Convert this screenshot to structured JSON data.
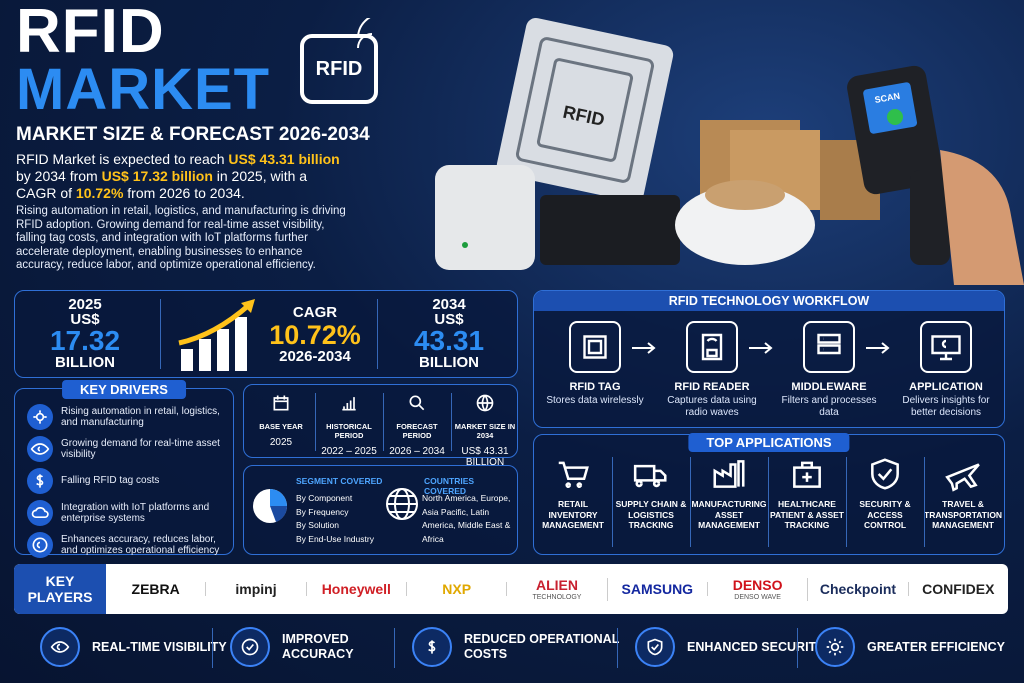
{
  "header": {
    "title_line1": "RFID",
    "title_line2": "MARKET",
    "badge": "RFID",
    "subtitle": "MARKET SIZE & FORECAST 2026-2034",
    "intro": [
      "RFID Market is expected to reach ",
      "US$ 43.31 billion",
      " by 2034 from ",
      "US$ 17.32 billion",
      " in 2025, with a CAGR of ",
      "10.72%",
      " from 2026 to 2034."
    ],
    "description": "Rising automation in retail, logistics, and manufacturing is driving RFID adoption. Growing demand for real-time asset visibility, falling tag costs, and integration with IoT platforms further accelerate deployment, enabling businesses to enhance accuracy, reduce labor, and optimize operational efficiency."
  },
  "hero": {
    "tag_label": "RFID",
    "scanner_label": "SCAN"
  },
  "stats": {
    "start": {
      "year": "2025",
      "currency": "US$",
      "value": "17.32",
      "unit": "BILLION"
    },
    "cagr": {
      "label": "CAGR",
      "value": "10.72%",
      "period": "2026-2034"
    },
    "end": {
      "year": "2034",
      "currency": "US$",
      "value": "43.31",
      "unit": "BILLION"
    }
  },
  "key_drivers": {
    "title": "KEY DRIVERS",
    "items": [
      "Rising automation in retail, logistics, and manufacturing",
      "Growing demand for real-time asset visibility",
      "Falling RFID tag costs",
      "Integration with IoT platforms and enterprise systems",
      "Enhances accuracy, reduces labor, and optimizes operational efficiency"
    ]
  },
  "report_info": [
    {
      "label": "BASE YEAR",
      "value": "2025"
    },
    {
      "label": "HISTORICAL PERIOD",
      "value": "2022 – 2025"
    },
    {
      "label": "FORECAST PERIOD",
      "value": "2026 – 2034"
    },
    {
      "label": "MARKET SIZE IN 2034",
      "value": "US$ 43.31 BILLION"
    }
  ],
  "segments": {
    "title": "SEGMENT COVERED",
    "items": [
      "By Component",
      "By Frequency",
      "By Solution",
      "By End-Use Industry"
    ]
  },
  "countries": {
    "title": "COUNTRIES COVERED",
    "text": "North America, Europe, Asia Pacific, Latin America, Middle East & Africa"
  },
  "workflow": {
    "title": "RFID TECHNOLOGY WORKFLOW",
    "steps": [
      {
        "name": "RFID TAG",
        "desc": "Stores data wirelessly"
      },
      {
        "name": "RFID READER",
        "desc": "Captures data using radio waves"
      },
      {
        "name": "MIDDLEWARE",
        "desc": "Filters and processes data"
      },
      {
        "name": "APPLICATION",
        "desc": "Delivers insights for better decisions"
      }
    ]
  },
  "applications": {
    "title": "TOP APPLICATIONS",
    "items": [
      "RETAIL INVENTORY MANAGEMENT",
      "SUPPLY CHAIN & LOGISTICS TRACKING",
      "MANUFACTURING ASSET MANAGEMENT",
      "HEALTHCARE PATIENT & ASSET TRACKING",
      "SECURITY & ACCESS CONTROL",
      "TRAVEL & TRANSPORTATION MANAGEMENT"
    ]
  },
  "key_players": {
    "title": "KEY PLAYERS",
    "players": [
      {
        "name": "ZEBRA"
      },
      {
        "name": "impinj"
      },
      {
        "name": "Honeywell"
      },
      {
        "name": "NXP"
      },
      {
        "name": "ALIEN",
        "sub": "TECHNOLOGY"
      },
      {
        "name": "SAMSUNG"
      },
      {
        "name": "DENSO",
        "sub": "DENSO WAVE"
      },
      {
        "name": "Checkpoint"
      },
      {
        "name": "CONFIDEX"
      }
    ]
  },
  "benefits": [
    "REAL-TIME VISIBILITY",
    "IMPROVED ACCURACY",
    "REDUCED OPERATIONAL COSTS",
    "ENHANCED SECURITY",
    "GREATER EFFICIENCY"
  ]
}
